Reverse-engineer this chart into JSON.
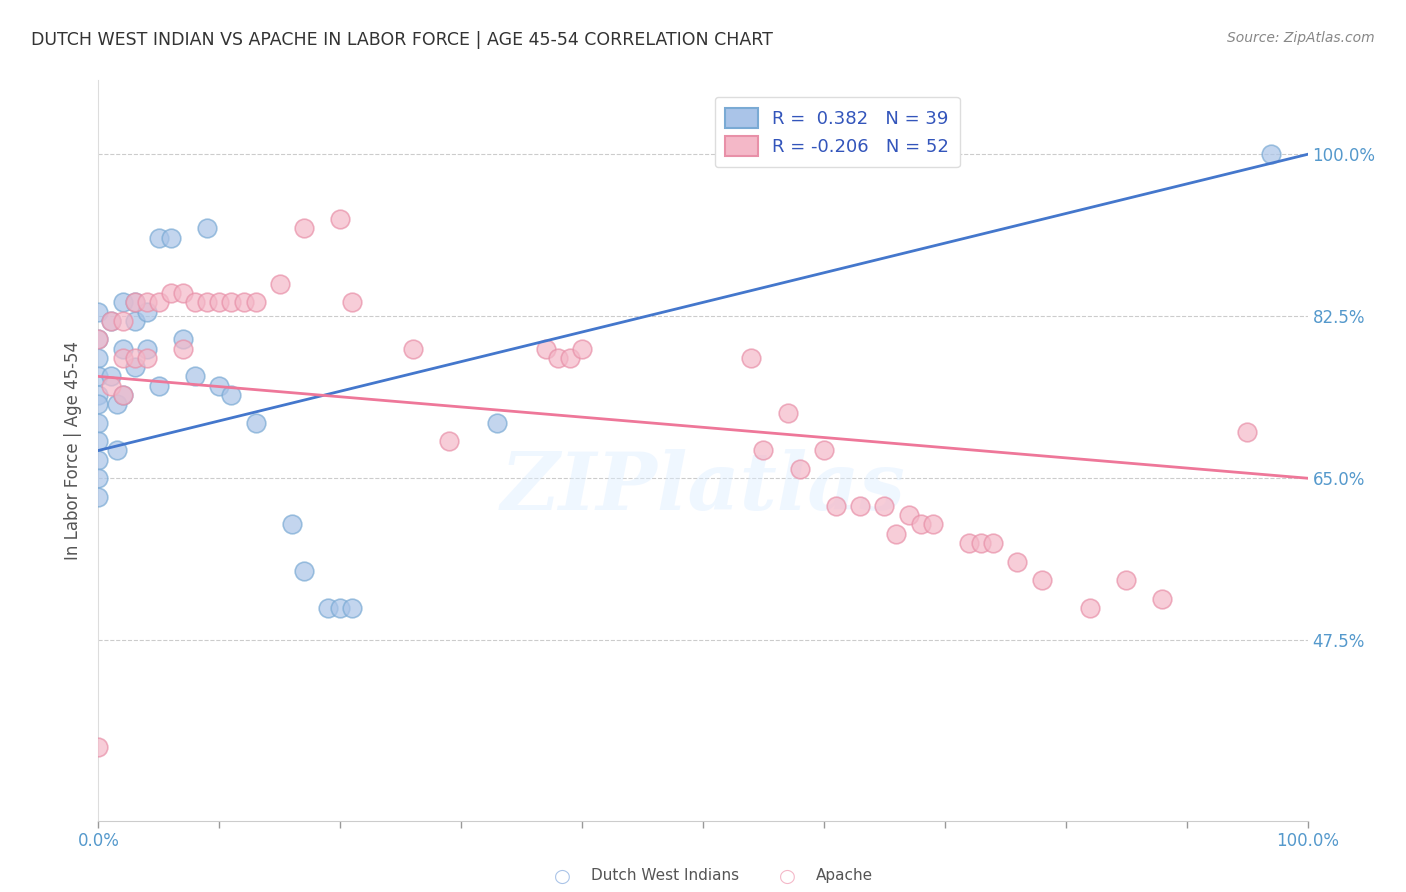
{
  "title": "DUTCH WEST INDIAN VS APACHE IN LABOR FORCE | AGE 45-54 CORRELATION CHART",
  "source": "Source: ZipAtlas.com",
  "ylabel": "In Labor Force | Age 45-54",
  "xlim": [
    0,
    1
  ],
  "ylim_min": 0.28,
  "ylim_max": 1.08,
  "ytick_vals": [
    0.475,
    0.65,
    0.825,
    1.0
  ],
  "ytick_labels": [
    "47.5%",
    "65.0%",
    "82.5%",
    "100.0%"
  ],
  "grid_color": "#cccccc",
  "background_color": "#ffffff",
  "watermark": "ZIPlatlas",
  "blue_color": "#aac4e8",
  "pink_color": "#f4b8c8",
  "blue_edge": "#7aaad4",
  "pink_edge": "#e890a8",
  "line_blue": "#4477cc",
  "line_pink": "#ee7799",
  "tick_color": "#5599cc",
  "dutch_x": [
    0.0,
    0.0,
    0.0,
    0.0,
    0.0,
    0.0,
    0.0,
    0.0,
    0.0,
    0.0,
    0.0,
    0.01,
    0.01,
    0.015,
    0.015,
    0.02,
    0.02,
    0.02,
    0.03,
    0.03,
    0.03,
    0.04,
    0.04,
    0.05,
    0.05,
    0.06,
    0.07,
    0.08,
    0.09,
    0.1,
    0.11,
    0.13,
    0.16,
    0.17,
    0.19,
    0.2,
    0.21,
    0.33,
    0.97
  ],
  "dutch_y": [
    0.83,
    0.8,
    0.78,
    0.76,
    0.74,
    0.73,
    0.71,
    0.69,
    0.67,
    0.65,
    0.63,
    0.82,
    0.76,
    0.73,
    0.68,
    0.84,
    0.79,
    0.74,
    0.84,
    0.82,
    0.77,
    0.83,
    0.79,
    0.91,
    0.75,
    0.91,
    0.8,
    0.76,
    0.92,
    0.75,
    0.74,
    0.71,
    0.6,
    0.55,
    0.51,
    0.51,
    0.51,
    0.71,
    1.0
  ],
  "apache_x": [
    0.0,
    0.0,
    0.01,
    0.01,
    0.02,
    0.02,
    0.02,
    0.03,
    0.03,
    0.04,
    0.04,
    0.05,
    0.06,
    0.07,
    0.07,
    0.08,
    0.09,
    0.1,
    0.11,
    0.12,
    0.13,
    0.15,
    0.17,
    0.2,
    0.21,
    0.26,
    0.29,
    0.37,
    0.38,
    0.39,
    0.4,
    0.54,
    0.55,
    0.57,
    0.58,
    0.6,
    0.61,
    0.63,
    0.65,
    0.66,
    0.67,
    0.68,
    0.69,
    0.72,
    0.73,
    0.74,
    0.76,
    0.78,
    0.82,
    0.85,
    0.88,
    0.95
  ],
  "apache_y": [
    0.8,
    0.36,
    0.82,
    0.75,
    0.82,
    0.78,
    0.74,
    0.84,
    0.78,
    0.84,
    0.78,
    0.84,
    0.85,
    0.85,
    0.79,
    0.84,
    0.84,
    0.84,
    0.84,
    0.84,
    0.84,
    0.86,
    0.92,
    0.93,
    0.84,
    0.79,
    0.69,
    0.79,
    0.78,
    0.78,
    0.79,
    0.78,
    0.68,
    0.72,
    0.66,
    0.68,
    0.62,
    0.62,
    0.62,
    0.59,
    0.61,
    0.6,
    0.6,
    0.58,
    0.58,
    0.58,
    0.56,
    0.54,
    0.51,
    0.54,
    0.52,
    0.7
  ]
}
